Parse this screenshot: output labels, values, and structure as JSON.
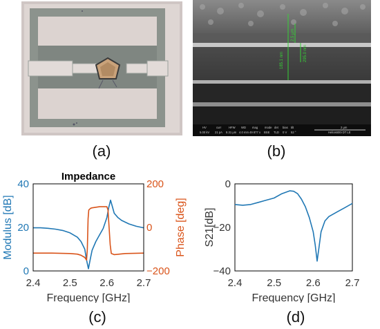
{
  "panels": {
    "a": {
      "label": "(a)"
    },
    "b": {
      "label": "(b)",
      "annotations": [
        "185.1 nm",
        "2.5 μm",
        "295.0 nm",
        "2 μm"
      ],
      "footer": {
        "headers": [
          "HV",
          "curr",
          "HFW",
          "WD",
          "mag",
          "mode",
          "det",
          "bias",
          "tilt"
        ],
        "values": [
          "5.00 kV",
          "21 pA",
          "8.31 μm",
          "4.0 mm",
          "49 877 x",
          "BSE",
          "TLD",
          "0 V",
          "52 °"
        ],
        "scale": "2 μm",
        "instrument": "Helios600i DT LE"
      }
    },
    "c": {
      "label": "(c)"
    },
    "d": {
      "label": "(d)"
    }
  },
  "chart_data": [
    {
      "type": "line",
      "title": "Impedance",
      "xlabel": "Frequency [GHz]",
      "ylabel_left": "Modulus [dB]",
      "ylabel_right": "Phase [deg]",
      "xlim": [
        2.4,
        2.7
      ],
      "ylim_left": [
        0,
        40
      ],
      "ylim_right": [
        -200,
        200
      ],
      "xticks": [
        "2.4",
        "2.5",
        "2.6",
        "2.7"
      ],
      "yticks_left": [
        "0",
        "20",
        "40"
      ],
      "yticks_right": [
        "−200",
        "0",
        "200"
      ],
      "series": [
        {
          "axis": "left",
          "color": "#1f77b4",
          "x": [
            2.4,
            2.42,
            2.44,
            2.46,
            2.48,
            2.5,
            2.52,
            2.53,
            2.54,
            2.545,
            2.55,
            2.555,
            2.56,
            2.57,
            2.58,
            2.59,
            2.6,
            2.605,
            2.61,
            2.615,
            2.62,
            2.63,
            2.64,
            2.66,
            2.68,
            2.7
          ],
          "y": [
            19.8,
            19.8,
            19.6,
            19.2,
            18.6,
            17.5,
            15.5,
            13.5,
            10.0,
            5.0,
            1.0,
            5.5,
            9.5,
            13.5,
            16.5,
            19.5,
            24.5,
            29.0,
            32.5,
            29.5,
            26.5,
            24.5,
            23.2,
            21.6,
            20.5,
            19.8
          ]
        },
        {
          "axis": "right",
          "color": "#d95319",
          "x": [
            2.4,
            2.45,
            2.5,
            2.52,
            2.53,
            2.54,
            2.545,
            2.547,
            2.549,
            2.551,
            2.556,
            2.56,
            2.58,
            2.6,
            2.603,
            2.606,
            2.609,
            2.612,
            2.62,
            2.65,
            2.7
          ],
          "y": [
            -118,
            -118,
            -120,
            -123,
            -128,
            -138,
            -150,
            -100,
            40,
            80,
            88,
            90,
            95,
            95,
            80,
            0,
            -80,
            -120,
            -125,
            -120,
            -118
          ]
        }
      ]
    },
    {
      "type": "line",
      "xlabel": "Frequency [GHz]",
      "ylabel": "S21[dB]",
      "xlim": [
        2.4,
        2.7
      ],
      "ylim": [
        -40,
        0
      ],
      "xticks": [
        "2.4",
        "2.5",
        "2.6",
        "2.7"
      ],
      "yticks": [
        "0",
        "−20",
        "−40"
      ],
      "series": [
        {
          "color": "#1f77b4",
          "x": [
            2.4,
            2.42,
            2.44,
            2.46,
            2.48,
            2.5,
            2.52,
            2.54,
            2.55,
            2.56,
            2.57,
            2.58,
            2.59,
            2.6,
            2.605,
            2.61,
            2.615,
            2.62,
            2.63,
            2.64,
            2.66,
            2.68,
            2.7
          ],
          "y": [
            -9.5,
            -9.8,
            -9.5,
            -8.5,
            -7.5,
            -6.5,
            -4.5,
            -3.2,
            -3.4,
            -4.5,
            -7.0,
            -10.5,
            -15.5,
            -22.0,
            -28.0,
            -35.5,
            -29.0,
            -22.0,
            -17.0,
            -15.0,
            -13.0,
            -11.0,
            -9.0
          ]
        }
      ]
    }
  ]
}
